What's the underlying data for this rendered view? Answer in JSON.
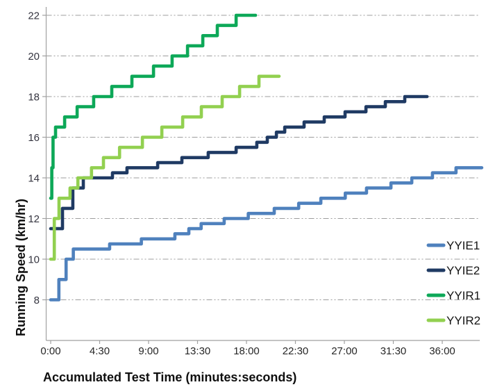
{
  "chart": {
    "y_axis": {
      "title": "Running Speed (km/hr)",
      "ticks": [
        {
          "value": 8,
          "label": "8"
        },
        {
          "value": 10,
          "label": "10"
        },
        {
          "value": 12,
          "label": "12"
        },
        {
          "value": 14,
          "label": "14"
        },
        {
          "value": 16,
          "label": "16"
        },
        {
          "value": 18,
          "label": "18"
        },
        {
          "value": 20,
          "label": "20"
        },
        {
          "value": 22,
          "label": "22"
        }
      ]
    },
    "x_axis": {
      "title": "Accumulated Test Time (minutes:seconds)",
      "ticks": [
        {
          "seconds": 0,
          "label": "0:00"
        },
        {
          "seconds": 270,
          "label": "4:30"
        },
        {
          "seconds": 540,
          "label": "9:00"
        },
        {
          "seconds": 810,
          "label": "13:30"
        },
        {
          "seconds": 1080,
          "label": "18:00"
        },
        {
          "seconds": 1350,
          "label": "22:30"
        },
        {
          "seconds": 1620,
          "label": "27:00"
        },
        {
          "seconds": 1890,
          "label": "31:30"
        },
        {
          "seconds": 2160,
          "label": "36:00"
        }
      ]
    },
    "legend": [
      {
        "label": "YYIE1",
        "color": "#4f81bd"
      },
      {
        "label": "YYIE2",
        "color": "#1f3a63"
      },
      {
        "label": "YYIR1",
        "color": "#0da858"
      },
      {
        "label": "YYIR2",
        "color": "#92d050"
      }
    ]
  },
  "chart_data": {
    "type": "line",
    "subtype": "step-after",
    "title": "",
    "xlabel": "Accumulated Test Time (minutes:seconds)",
    "ylabel": "Running Speed (km/hr)",
    "x_unit": "seconds",
    "xlim": [
      0,
      2380
    ],
    "ylim": [
      6,
      22.4
    ],
    "grid": "horizontal, gray dash-dot",
    "legend_position": "inside-right",
    "series": [
      {
        "name": "YYIE1",
        "color": "#4f81bd",
        "steps": [
          [
            0,
            8
          ],
          [
            45,
            9
          ],
          [
            85,
            10
          ],
          [
            125,
            10.5
          ],
          [
            325,
            10.75
          ],
          [
            500,
            11
          ],
          [
            685,
            11.25
          ],
          [
            762,
            11.5
          ],
          [
            830,
            11.75
          ],
          [
            957,
            12
          ],
          [
            1090,
            12.25
          ],
          [
            1233,
            12.5
          ],
          [
            1368,
            12.75
          ],
          [
            1490,
            13
          ],
          [
            1625,
            13.25
          ],
          [
            1742,
            13.5
          ],
          [
            1877,
            13.75
          ],
          [
            1992,
            14
          ],
          [
            2106,
            14.25
          ],
          [
            2236,
            14.5
          ]
        ],
        "end_time": 2378
      },
      {
        "name": "YYIE2",
        "color": "#1f3a63",
        "steps": [
          [
            0,
            11.5
          ],
          [
            65,
            12.5
          ],
          [
            122,
            13.5
          ],
          [
            180,
            14
          ],
          [
            341,
            14.25
          ],
          [
            421,
            14.5
          ],
          [
            590,
            14.75
          ],
          [
            724,
            15
          ],
          [
            869,
            15.25
          ],
          [
            1023,
            15.5
          ],
          [
            1137,
            15.75
          ],
          [
            1195,
            16
          ],
          [
            1245,
            16.25
          ],
          [
            1291,
            16.5
          ],
          [
            1398,
            16.75
          ],
          [
            1509,
            17
          ],
          [
            1624,
            17.25
          ],
          [
            1739,
            17.5
          ],
          [
            1846,
            17.75
          ],
          [
            1953,
            18
          ]
        ],
        "end_time": 2076
      },
      {
        "name": "YYIR1",
        "color": "#0da858",
        "steps": [
          [
            0,
            13
          ],
          [
            6,
            14.5
          ],
          [
            13,
            16
          ],
          [
            27,
            16.5
          ],
          [
            77,
            17
          ],
          [
            146,
            17.5
          ],
          [
            237,
            18
          ],
          [
            337,
            18.5
          ],
          [
            448,
            19
          ],
          [
            567,
            19.5
          ],
          [
            670,
            20
          ],
          [
            755,
            20.5
          ],
          [
            839,
            21
          ],
          [
            919,
            21.5
          ],
          [
            1023,
            22
          ]
        ],
        "end_time": 1130
      },
      {
        "name": "YYIR2",
        "color": "#92d050",
        "steps": [
          [
            0,
            10
          ],
          [
            20,
            12
          ],
          [
            46,
            13
          ],
          [
            107,
            13.5
          ],
          [
            150,
            14
          ],
          [
            225,
            14.5
          ],
          [
            291,
            15
          ],
          [
            380,
            15.5
          ],
          [
            506,
            16
          ],
          [
            613,
            16.5
          ],
          [
            728,
            17
          ],
          [
            831,
            17.5
          ],
          [
            946,
            18
          ],
          [
            1042,
            18.5
          ],
          [
            1149,
            19
          ]
        ],
        "end_time": 1260
      }
    ]
  }
}
